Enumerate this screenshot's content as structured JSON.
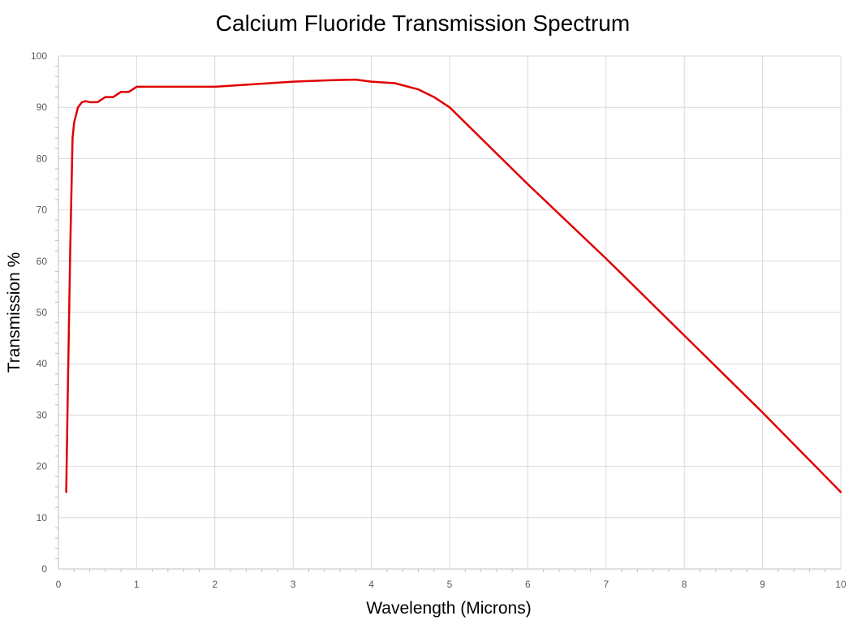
{
  "chart_data": {
    "type": "line",
    "title": "Calcium Fluoride Transmission Spectrum",
    "xlabel": "Wavelength (Microns)",
    "ylabel": "Transmission %",
    "xlim": [
      0,
      10
    ],
    "ylim": [
      0,
      100
    ],
    "x_ticks": [
      "0",
      "1",
      "2",
      "3",
      "4",
      "5",
      "6",
      "7",
      "8",
      "9",
      "10"
    ],
    "y_ticks": [
      "0",
      "10",
      "20",
      "30",
      "40",
      "50",
      "60",
      "70",
      "80",
      "90",
      "100"
    ],
    "grid": true,
    "legend": "none",
    "line_color": "#e00000",
    "series": [
      {
        "x": [
          0.1,
          0.12,
          0.15,
          0.18,
          0.2,
          0.25,
          0.3,
          0.35,
          0.4,
          0.5,
          0.55,
          0.6,
          0.7,
          0.8,
          0.9,
          1.0,
          1.1,
          1.5,
          2.0,
          2.5,
          3.0,
          3.5,
          3.8,
          4.0,
          4.3,
          4.6,
          4.8,
          5.0,
          6.0,
          7.0,
          8.0,
          9.0,
          10.0
        ],
        "y": [
          15,
          35,
          62,
          84,
          87,
          90,
          91,
          91.2,
          91,
          91,
          91.5,
          92,
          92,
          93,
          93,
          94,
          94,
          94,
          94,
          94.5,
          95,
          95.3,
          95.4,
          95,
          94.7,
          93.5,
          92,
          90,
          75,
          60.5,
          45.5,
          30.5,
          15
        ]
      }
    ]
  }
}
